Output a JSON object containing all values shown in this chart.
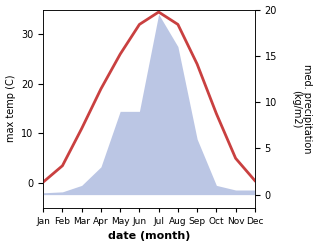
{
  "months": [
    "Jan",
    "Feb",
    "Mar",
    "Apr",
    "May",
    "Jun",
    "Jul",
    "Aug",
    "Sep",
    "Oct",
    "Nov",
    "Dec"
  ],
  "month_x": [
    1,
    2,
    3,
    4,
    5,
    6,
    7,
    8,
    9,
    10,
    11,
    12
  ],
  "temperature": [
    0.2,
    3.5,
    11.0,
    19.0,
    26.0,
    32.0,
    34.5,
    32.0,
    24.0,
    14.0,
    5.0,
    0.5
  ],
  "precipitation": [
    0.2,
    0.3,
    1.0,
    3.0,
    9.0,
    9.0,
    19.5,
    16.0,
    6.0,
    1.0,
    0.5,
    0.5
  ],
  "temp_color": "#c94040",
  "precip_color": "#b0bce0",
  "temp_ylim": [
    -5,
    35
  ],
  "precip_ylim": [
    -1.43,
    20
  ],
  "temp_yticks": [
    0,
    10,
    20,
    30
  ],
  "precip_yticks": [
    0,
    5,
    10,
    15,
    20
  ],
  "xlabel": "date (month)",
  "ylabel_left": "max temp (C)",
  "ylabel_right": "med. precipitation\n(kg/m2)",
  "background_color": "#ffffff"
}
